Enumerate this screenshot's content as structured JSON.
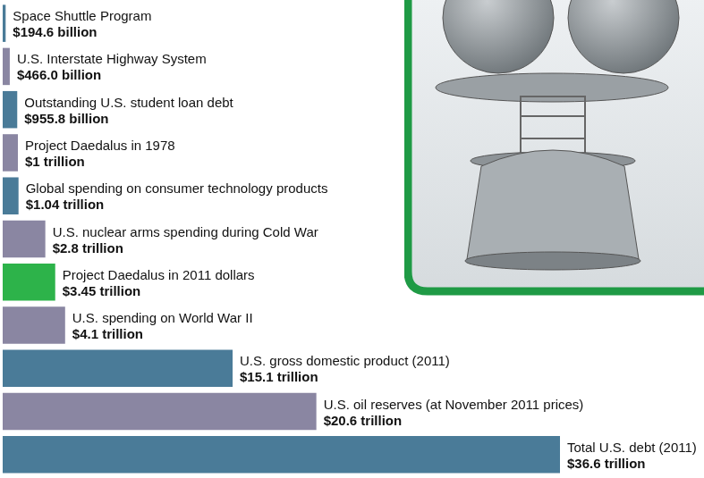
{
  "chart_data": {
    "type": "bar",
    "orientation": "horizontal",
    "categories": [
      "Space Shuttle Program",
      "U.S. Interstate Highway System",
      "Outstanding U.S. student loan debt",
      "Project Daedalus in 1978",
      "Global spending on consumer technology products",
      "U.S. nuclear arms spending during Cold War",
      "Project Daedalus in 2011 dollars",
      "U.S. spending on World War II",
      "U.S. gross domestic product (2011)",
      "U.S. oil reserves (at November 2011 prices)",
      "Total U.S. debt (2011)"
    ],
    "values": [
      194.6,
      466.0,
      955.8,
      1000,
      1040,
      2800,
      3450,
      4100,
      15100,
      20600,
      36600
    ],
    "value_labels": [
      "$194.6 billion",
      "$466.0 billion",
      "$955.8 billion",
      "$1 trillion",
      "$1.04 trillion",
      "$2.8 trillion",
      "$3.45 trillion",
      "$4.1 trillion",
      "$15.1 trillion",
      "$20.6 trillion",
      "$36.6 trillion"
    ],
    "colors": [
      "#4a7b98",
      "#8a86a2",
      "#4a7b98",
      "#8a86a2",
      "#4a7b98",
      "#8a86a2",
      "#2db34a",
      "#8a86a2",
      "#4a7b98",
      "#8a86a2",
      "#4a7b98"
    ],
    "xlim": [
      0,
      36600
    ],
    "data_labels": true,
    "tick_labels": false,
    "grid": false
  }
}
